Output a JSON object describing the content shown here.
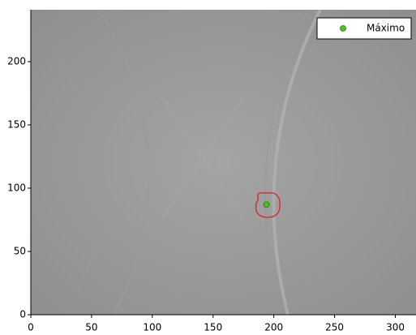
{
  "chart_data": {
    "type": "scatter",
    "series": [
      {
        "name": "Máximo",
        "color": "#4cc21e",
        "x": [
          194
        ],
        "values": [
          87
        ]
      }
    ],
    "xlim": [
      0,
      317
    ],
    "ylim": [
      0,
      241
    ],
    "xticks": [
      0,
      50,
      100,
      150,
      200,
      250,
      300
    ],
    "yticks": [
      0,
      50,
      100,
      150,
      200
    ],
    "legend": "upper right"
  }
}
